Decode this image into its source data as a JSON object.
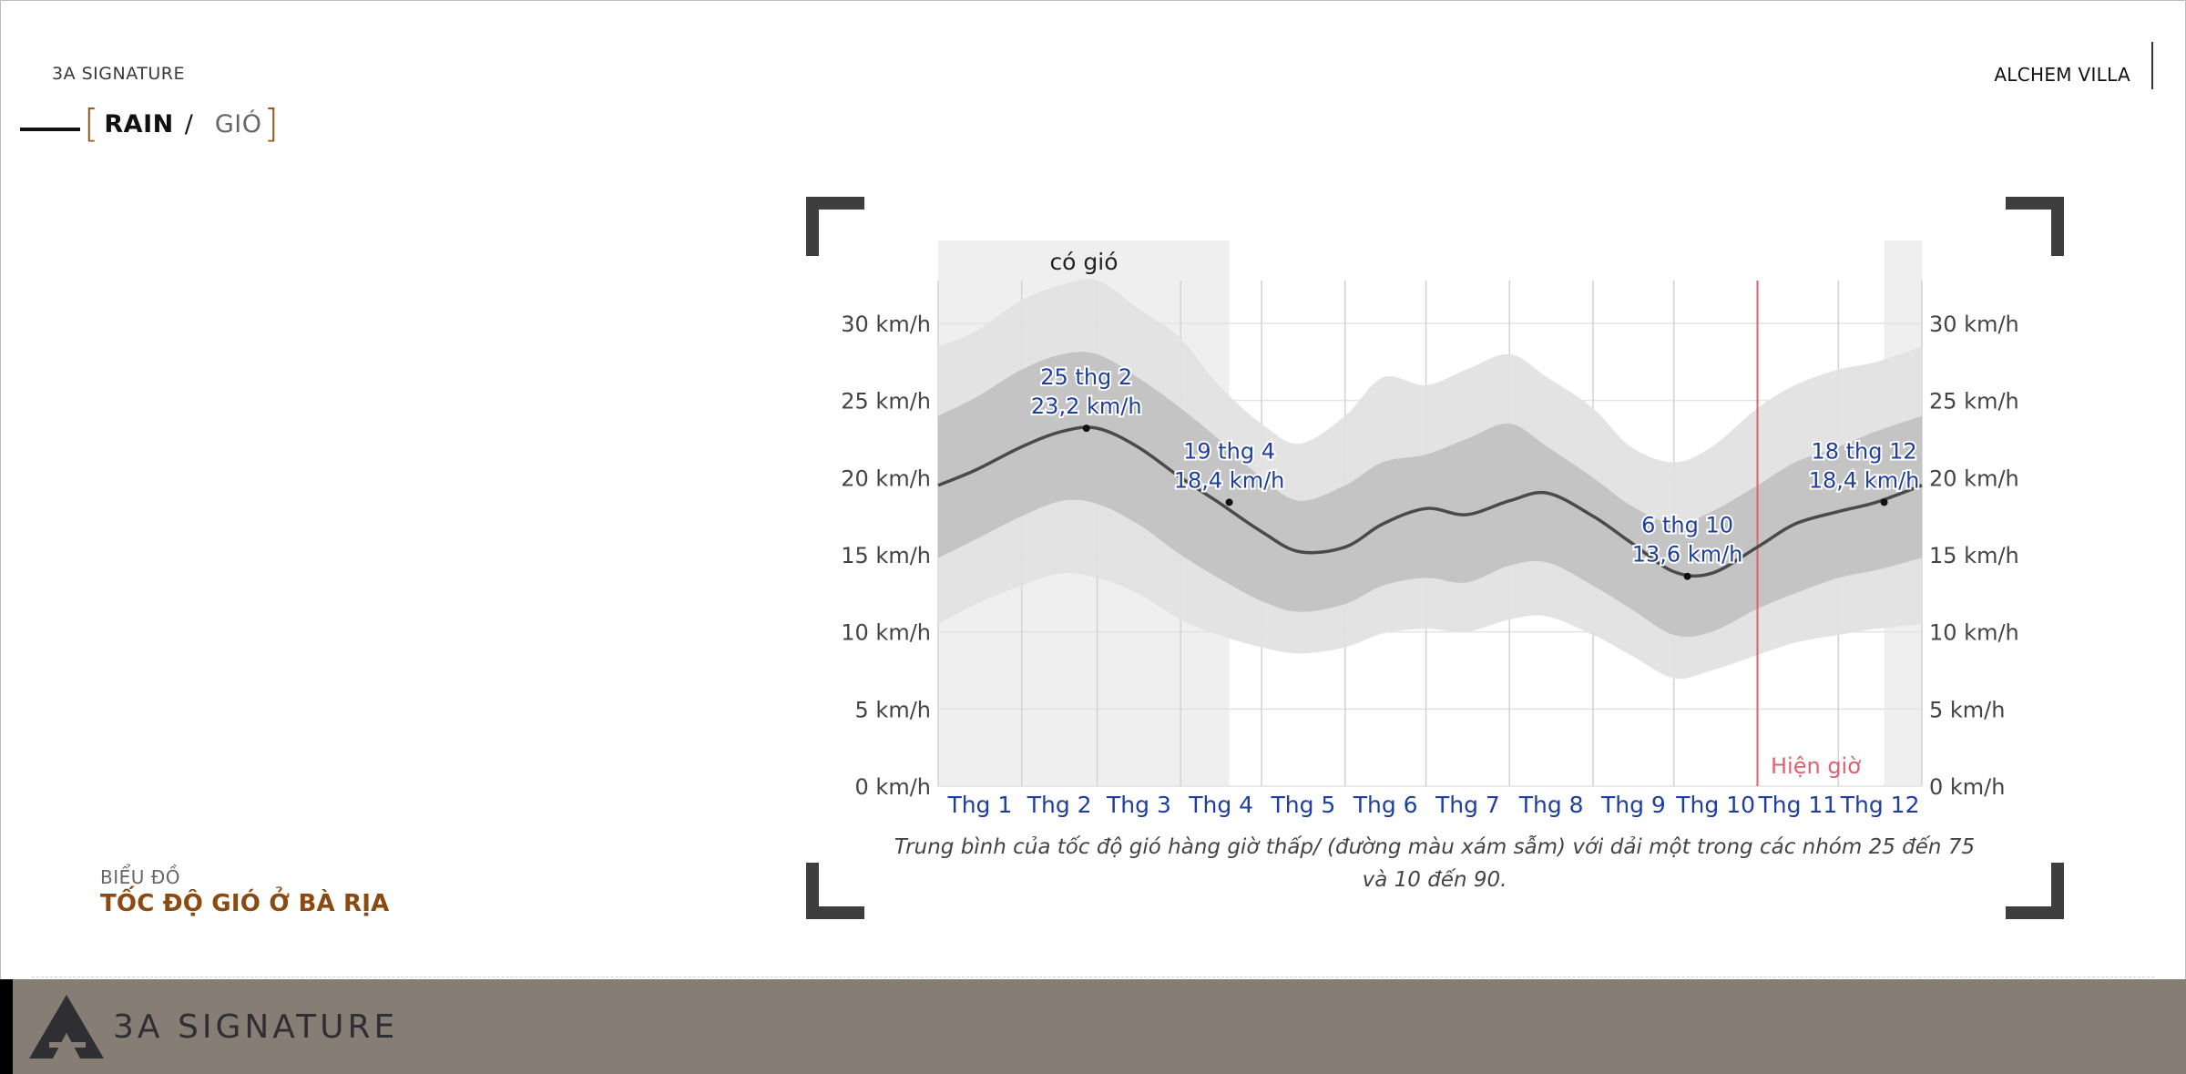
{
  "header": {
    "brand_left": "3A SIGNATURE",
    "brand_right": "ALCHEM VILLA",
    "section_main": "RAIN",
    "section_sep": "/",
    "section_alt": "GIÓ"
  },
  "side_caption": {
    "small": "BIỂU ĐỒ",
    "title": "TỐC ĐỘ GIÓ Ở BÀ RỊA"
  },
  "footer": {
    "brand": "3A SIGNATURE"
  },
  "colors": {
    "accent": "#9a5a1a",
    "title_brown": "#8a4a12",
    "label_blue": "#1f3f9e",
    "now_line": "#e06070",
    "band_outer": "#e2e2e2",
    "band_inner": "#c2c2c2",
    "windy_shade": "#efefef",
    "line": "#4a4a4a",
    "footer_bg": "#867e75"
  },
  "chart_data": {
    "type": "area",
    "title": "",
    "windy_label": "có gió",
    "now_label": "Hiện giờ",
    "caption": "Trung bình của tốc độ gió hàng giờ thấp/ (đường màu xám sẫm) với dải một trong các nhóm 25 đến 75 và 10 đến 90.",
    "x_tick_labels": [
      "Thg 1",
      "Thg 2",
      "Thg 3",
      "Thg 4",
      "Thg 5",
      "Thg 6",
      "Thg 7",
      "Thg 8",
      "Thg 9",
      "Thg 10",
      "Thg 11",
      "Thg 12"
    ],
    "y_tick_values": [
      0,
      5,
      10,
      15,
      20,
      25,
      30
    ],
    "y_tick_labels": [
      "0 km/h",
      "5 km/h",
      "10 km/h",
      "15 km/h",
      "20 km/h",
      "25 km/h",
      "30 km/h"
    ],
    "ylim": [
      0,
      32
    ],
    "xlim": [
      1,
      366
    ],
    "grid": true,
    "windy_periods": [
      [
        1,
        109
      ],
      [
        352,
        366
      ]
    ],
    "now_day": 305,
    "series": [
      {
        "role": "p90",
        "x": [
          1,
          15,
          32,
          47,
          60,
          75,
          91,
          105,
          121,
          135,
          152,
          166,
          182,
          197,
          213,
          227,
          244,
          258,
          274,
          288,
          305,
          319,
          335,
          349,
          366
        ],
        "y": [
          28.5,
          29.5,
          31.5,
          32.5,
          32.8,
          31.0,
          29.0,
          26.0,
          23.5,
          22.2,
          24.0,
          26.5,
          26.0,
          27.0,
          28.0,
          26.5,
          24.5,
          22.0,
          21.0,
          22.0,
          24.5,
          26.0,
          27.0,
          27.5,
          28.5
        ]
      },
      {
        "role": "p75",
        "x": [
          1,
          15,
          32,
          47,
          60,
          75,
          91,
          105,
          121,
          135,
          152,
          166,
          182,
          197,
          213,
          227,
          244,
          258,
          274,
          288,
          305,
          319,
          335,
          349,
          366
        ],
        "y": [
          24.0,
          25.2,
          27.0,
          28.0,
          28.0,
          26.5,
          24.5,
          22.5,
          20.0,
          18.5,
          19.5,
          21.0,
          21.5,
          22.5,
          23.5,
          22.0,
          20.0,
          18.2,
          17.0,
          17.8,
          19.5,
          21.0,
          22.0,
          23.0,
          24.0
        ]
      },
      {
        "role": "median",
        "x": [
          1,
          15,
          32,
          47,
          60,
          75,
          91,
          105,
          121,
          135,
          152,
          166,
          182,
          197,
          213,
          227,
          244,
          258,
          274,
          288,
          305,
          319,
          335,
          349,
          366
        ],
        "y": [
          19.5,
          20.5,
          22.0,
          23.0,
          23.2,
          22.0,
          20.0,
          18.4,
          16.5,
          15.2,
          15.5,
          17.0,
          18.0,
          17.6,
          18.5,
          19.0,
          17.5,
          15.8,
          13.9,
          13.8,
          15.5,
          17.0,
          17.8,
          18.4,
          19.5
        ]
      },
      {
        "role": "p25",
        "x": [
          1,
          15,
          32,
          47,
          60,
          75,
          91,
          105,
          121,
          135,
          152,
          166,
          182,
          197,
          213,
          227,
          244,
          258,
          274,
          288,
          305,
          319,
          335,
          349,
          366
        ],
        "y": [
          14.8,
          16.0,
          17.5,
          18.5,
          18.3,
          17.0,
          15.0,
          13.5,
          12.0,
          11.3,
          11.8,
          13.0,
          13.5,
          13.2,
          14.3,
          14.5,
          13.0,
          11.5,
          9.8,
          10.0,
          11.5,
          12.5,
          13.5,
          14.0,
          14.8
        ]
      },
      {
        "role": "p10",
        "x": [
          1,
          15,
          32,
          47,
          60,
          75,
          91,
          105,
          121,
          135,
          152,
          166,
          182,
          197,
          213,
          227,
          244,
          258,
          274,
          288,
          305,
          319,
          335,
          349,
          366
        ],
        "y": [
          10.5,
          11.8,
          13.0,
          13.8,
          13.5,
          12.5,
          10.8,
          9.8,
          9.0,
          8.6,
          9.0,
          9.9,
          10.2,
          10.0,
          10.8,
          11.0,
          9.8,
          8.5,
          7.0,
          7.5,
          8.5,
          9.3,
          9.8,
          10.2,
          10.5
        ]
      }
    ],
    "annotations": [
      {
        "x": 56,
        "y": 23.2,
        "date": "25 thg 2",
        "value": "23,2 km/h",
        "anchor": "above"
      },
      {
        "x": 109,
        "y": 18.4,
        "date": "19 thg 4",
        "value": "18,4 km/h",
        "anchor": "above"
      },
      {
        "x": 279,
        "y": 13.6,
        "date": "6 thg 10",
        "value": "13,6 km/h",
        "anchor": "above"
      },
      {
        "x": 352,
        "y": 18.4,
        "date": "18 thg 12",
        "value": "18,4 km/h",
        "anchor": "above-left"
      }
    ]
  }
}
